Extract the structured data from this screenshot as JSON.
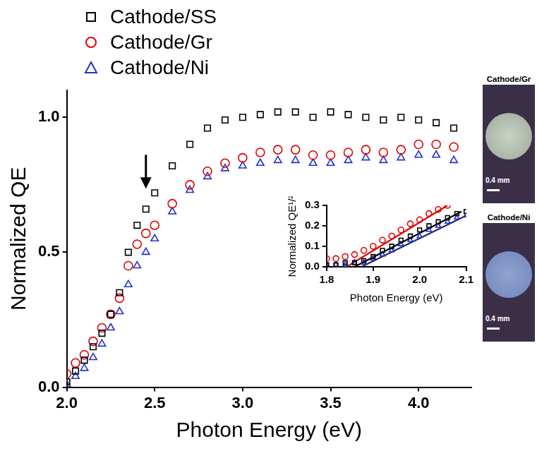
{
  "chart_data": [
    {
      "type": "scatter",
      "x_label": "Photon Energy (eV)",
      "y_label": "Normalized QE",
      "x": [
        2.0,
        2.05,
        2.1,
        2.15,
        2.2,
        2.25,
        2.3,
        2.35,
        2.4,
        2.45,
        2.5,
        2.6,
        2.7,
        2.8,
        2.9,
        3.0,
        3.1,
        3.2,
        3.3,
        3.4,
        3.5,
        3.6,
        3.7,
        3.8,
        3.9,
        4.0,
        4.1,
        4.2
      ],
      "series": [
        {
          "name": "Cathode/SS",
          "color": "#000000",
          "marker": "square",
          "values": [
            0.02,
            0.06,
            0.1,
            0.15,
            0.2,
            0.27,
            0.35,
            0.5,
            0.6,
            0.66,
            0.72,
            0.82,
            0.9,
            0.96,
            0.99,
            1.0,
            1.01,
            1.02,
            1.02,
            1.0,
            1.02,
            1.01,
            1.0,
            0.99,
            1.0,
            0.99,
            0.98,
            0.96
          ]
        },
        {
          "name": "Cathode/Gr",
          "color": "#e00000",
          "marker": "circle",
          "values": [
            0.05,
            0.09,
            0.12,
            0.17,
            0.22,
            0.27,
            0.33,
            0.45,
            0.53,
            0.57,
            0.6,
            0.68,
            0.75,
            0.8,
            0.83,
            0.85,
            0.87,
            0.88,
            0.88,
            0.86,
            0.86,
            0.87,
            0.88,
            0.87,
            0.88,
            0.9,
            0.9,
            0.89
          ]
        },
        {
          "name": "Cathode/Ni",
          "color": "#2233cc",
          "marker": "triangle",
          "values": [
            0.01,
            0.04,
            0.07,
            0.11,
            0.16,
            0.22,
            0.28,
            0.38,
            0.45,
            0.5,
            0.55,
            0.65,
            0.73,
            0.78,
            0.81,
            0.82,
            0.83,
            0.84,
            0.84,
            0.83,
            0.83,
            0.84,
            0.85,
            0.84,
            0.85,
            0.86,
            0.86,
            0.84
          ]
        }
      ],
      "xlim": [
        2.0,
        4.3
      ],
      "xticks": [
        {
          "value": 2.0,
          "label": "2.0"
        },
        2.5,
        {
          "value": 3.0,
          "label": "3.0"
        },
        3.5,
        {
          "value": 4.0,
          "label": "4.0"
        }
      ],
      "ylim": [
        0,
        1.1
      ],
      "yticks": [
        {
          "value": 0,
          "label": "0.0"
        },
        0.5,
        {
          "value": 1.0,
          "label": "1.0"
        }
      ],
      "grid": false,
      "legend": "top left",
      "arrows": [
        {
          "x": 2.45,
          "y": 0.72
        }
      ]
    },
    {
      "type": "scatter",
      "x_label": "Photon Energy (eV)",
      "y_label": "Normalized QE¹/²",
      "x": [
        1.8,
        1.82,
        1.84,
        1.86,
        1.88,
        1.9,
        1.92,
        1.94,
        1.96,
        1.98,
        2.0,
        2.02,
        2.04,
        2.06,
        2.08,
        2.1
      ],
      "series": [
        {
          "name": "Cathode/SS",
          "color": "#000000",
          "marker": "square",
          "values": [
            0.01,
            0.01,
            0.02,
            0.02,
            0.03,
            0.05,
            0.08,
            0.1,
            0.13,
            0.15,
            0.18,
            0.2,
            0.22,
            0.24,
            0.26,
            0.27
          ]
        },
        {
          "name": "Cathode/Gr",
          "color": "#e00000",
          "marker": "circle",
          "values": [
            0.04,
            0.04,
            0.05,
            0.06,
            0.08,
            0.1,
            0.13,
            0.15,
            0.18,
            0.21,
            0.23,
            0.26,
            0.28,
            0.3,
            null,
            null
          ]
        },
        {
          "name": "Cathode/Ni",
          "color": "#2233cc",
          "marker": "triangle",
          "values": [
            0.01,
            0.01,
            0.01,
            0.02,
            0.02,
            0.04,
            0.06,
            0.08,
            0.11,
            0.13,
            0.15,
            0.18,
            0.2,
            0.22,
            0.24,
            0.25
          ]
        },
        {
          "type": "line",
          "color": "#e00000",
          "marker": "none",
          "line_style": "solid",
          "x": [
            1.843,
            2.06
          ],
          "values": [
            0,
            0.3
          ]
        },
        {
          "type": "line",
          "color": "#000000",
          "marker": "none",
          "line_style": "solid",
          "x": [
            1.86,
            2.09
          ],
          "values": [
            0,
            0.27
          ]
        },
        {
          "type": "line",
          "color": "#1a2a6c",
          "marker": "none",
          "line_style": "solid",
          "x": [
            1.875,
            2.1
          ],
          "values": [
            0,
            0.25
          ]
        }
      ],
      "xlim": [
        1.8,
        2.1
      ],
      "xticks": [
        1.8,
        1.9,
        {
          "value": 2.0,
          "label": "2.0"
        },
        2.1
      ],
      "ylim": [
        0,
        0.3
      ],
      "yticks": [
        {
          "value": 0,
          "label": "0.0"
        },
        0.1,
        0.2,
        0.3
      ],
      "grid": false
    }
  ],
  "panels": [
    {
      "title": "Cathode/Gr",
      "scale_bar": "0.4 mm"
    },
    {
      "title": "Cathode/Ni",
      "scale_bar": "0.4 mm"
    }
  ]
}
